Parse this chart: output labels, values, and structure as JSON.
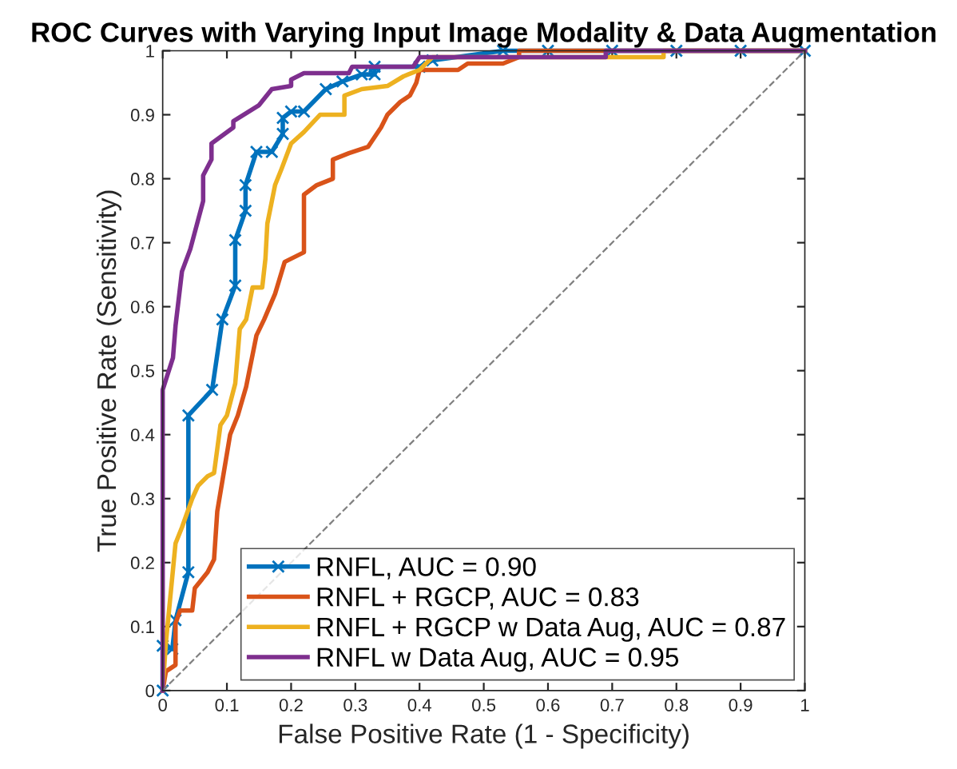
{
  "chart_data": {
    "type": "line",
    "title": "ROC Curves with Varying Input Image Modality & Data Augmentation",
    "xlabel": "False Positive Rate (1 - Specificity)",
    "ylabel": "True Positive Rate (Sensitivity)",
    "xlim": [
      0,
      1
    ],
    "ylim": [
      0,
      1
    ],
    "xticks": [
      0,
      0.1,
      0.2,
      0.3,
      0.4,
      0.5,
      0.6,
      0.7,
      0.8,
      0.9,
      1
    ],
    "yticks": [
      0,
      0.1,
      0.2,
      0.3,
      0.4,
      0.5,
      0.6,
      0.7,
      0.8,
      0.9,
      1
    ],
    "grid": false,
    "legend": "bottom right",
    "series": [
      {
        "name": "RNFL, AUC = 0.90",
        "color": "#0072bd",
        "marker": "cross",
        "x": [
          0,
          0,
          0.015,
          0.02,
          0.04,
          0.04,
          0.077,
          0.093,
          0.113,
          0.113,
          0.129,
          0.129,
          0.146,
          0.17,
          0.187,
          0.187,
          0.2,
          0.22,
          0.254,
          0.28,
          0.31,
          0.33,
          0.33,
          0.4,
          0.42,
          0.53,
          0.6,
          0.7,
          0.8,
          0.9,
          1
        ],
        "values": [
          0,
          0.07,
          0.065,
          0.11,
          0.185,
          0.43,
          0.47,
          0.58,
          0.633,
          0.704,
          0.75,
          0.79,
          0.842,
          0.842,
          0.87,
          0.895,
          0.905,
          0.905,
          0.94,
          0.952,
          0.963,
          0.963,
          0.975,
          0.975,
          0.985,
          1,
          1,
          1,
          1,
          1,
          1
        ]
      },
      {
        "name": "RNFL + RGCP, AUC = 0.83",
        "color": "#d95319",
        "marker": "none",
        "x": [
          0,
          0.005,
          0.02,
          0.02,
          0.027,
          0.046,
          0.05,
          0.07,
          0.08,
          0.085,
          0.095,
          0.105,
          0.117,
          0.13,
          0.146,
          0.158,
          0.175,
          0.19,
          0.22,
          0.22,
          0.24,
          0.265,
          0.265,
          0.29,
          0.32,
          0.34,
          0.35,
          0.37,
          0.385,
          0.395,
          0.4,
          0.46,
          0.475,
          0.53,
          0.555,
          0.555,
          1
        ],
        "values": [
          0,
          0.03,
          0.04,
          0.105,
          0.125,
          0.125,
          0.16,
          0.185,
          0.205,
          0.28,
          0.34,
          0.4,
          0.43,
          0.475,
          0.555,
          0.58,
          0.62,
          0.67,
          0.685,
          0.775,
          0.79,
          0.8,
          0.83,
          0.84,
          0.85,
          0.88,
          0.9,
          0.92,
          0.93,
          0.95,
          0.97,
          0.97,
          0.98,
          0.98,
          0.99,
          1,
          1
        ]
      },
      {
        "name": "RNFL + RGCP w Data Aug, AUC = 0.87",
        "color": "#edb120",
        "marker": "none",
        "x": [
          0,
          0.005,
          0.02,
          0.03,
          0.046,
          0.055,
          0.07,
          0.08,
          0.09,
          0.1,
          0.113,
          0.12,
          0.13,
          0.14,
          0.155,
          0.16,
          0.163,
          0.175,
          0.185,
          0.2,
          0.22,
          0.245,
          0.283,
          0.283,
          0.31,
          0.35,
          0.375,
          0.4,
          0.42,
          0.78,
          0.78,
          1
        ],
        "values": [
          0,
          0.075,
          0.23,
          0.255,
          0.3,
          0.32,
          0.335,
          0.34,
          0.415,
          0.43,
          0.48,
          0.565,
          0.58,
          0.63,
          0.63,
          0.675,
          0.73,
          0.79,
          0.815,
          0.855,
          0.873,
          0.9,
          0.9,
          0.93,
          0.94,
          0.945,
          0.96,
          0.97,
          0.99,
          0.99,
          1,
          1
        ]
      },
      {
        "name": "RNFL w Data Aug, AUC = 0.95",
        "color": "#7e2f8e",
        "marker": "none",
        "x": [
          0,
          0,
          0.016,
          0.02,
          0.03,
          0.043,
          0.063,
          0.063,
          0.076,
          0.076,
          0.11,
          0.11,
          0.15,
          0.17,
          0.2,
          0.2,
          0.22,
          0.29,
          0.295,
          0.39,
          0.4,
          0.69,
          0.69,
          1
        ],
        "values": [
          0,
          0.47,
          0.52,
          0.57,
          0.655,
          0.69,
          0.765,
          0.805,
          0.83,
          0.855,
          0.88,
          0.89,
          0.915,
          0.94,
          0.945,
          0.955,
          0.965,
          0.965,
          0.975,
          0.975,
          0.99,
          0.99,
          1,
          1
        ]
      },
      {
        "color": "#808080",
        "line_style": "dashed",
        "marker": "none",
        "x": [
          0,
          1
        ],
        "values": [
          0,
          1
        ]
      }
    ]
  }
}
